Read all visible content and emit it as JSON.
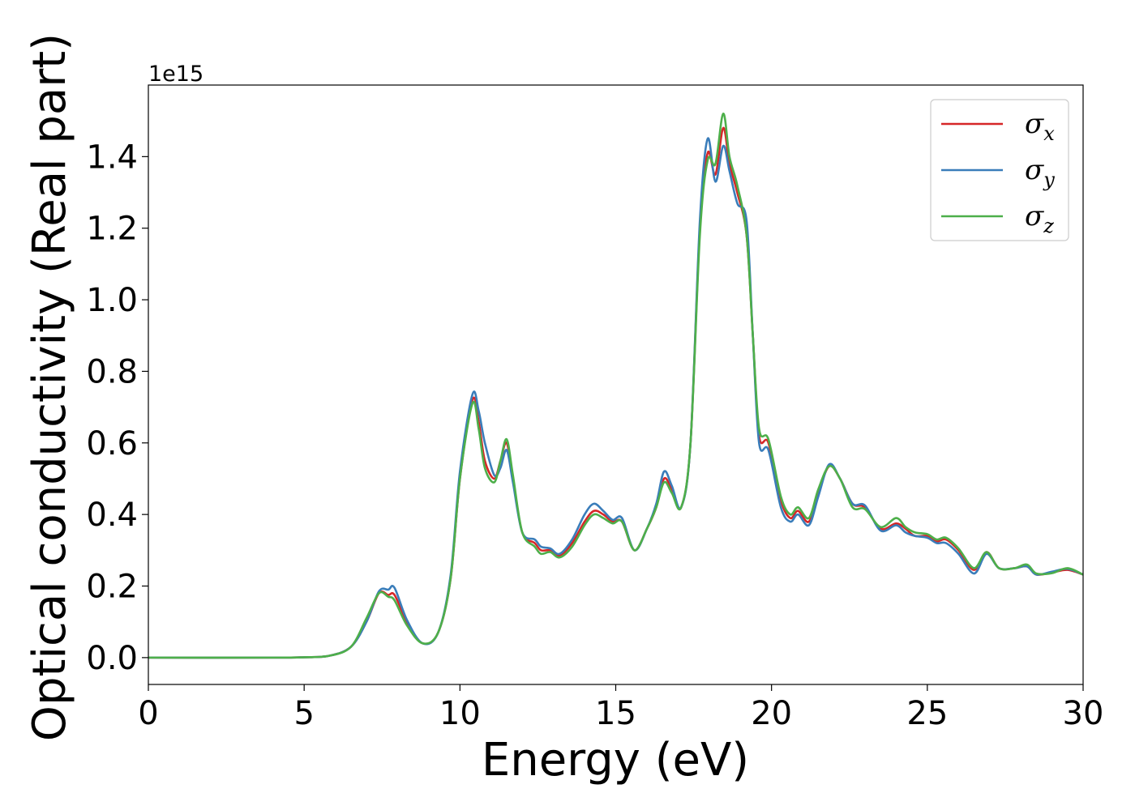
{
  "chart_data": {
    "type": "line",
    "title": "",
    "xlabel": "Energy (eV)",
    "ylabel": "Optical conductivity (Real part)",
    "y_offset_label": "1e15",
    "xlim": [
      0,
      30
    ],
    "ylim": [
      -0.075,
      1.6
    ],
    "x_ticks": [
      0,
      5,
      10,
      15,
      20,
      25,
      30
    ],
    "x_tick_labels": [
      "0",
      "5",
      "10",
      "15",
      "20",
      "25",
      "30"
    ],
    "y_ticks": [
      0.0,
      0.2,
      0.4,
      0.6,
      0.8,
      1.0,
      1.2,
      1.4
    ],
    "y_tick_labels": [
      "0.0",
      "0.2",
      "0.4",
      "0.6",
      "0.8",
      "1.0",
      "1.2",
      "1.4"
    ],
    "grid": false,
    "legend_position": "top-right",
    "series": [
      {
        "name": "σx",
        "symbol": "σ",
        "subscript": "x",
        "color": "#d62728",
        "x": [
          0,
          4,
          5,
          5.8,
          6.5,
          7.0,
          7.4,
          7.7,
          7.9,
          8.3,
          8.8,
          9.3,
          9.7,
          10.0,
          10.4,
          10.6,
          10.8,
          11.1,
          11.3,
          11.5,
          11.7,
          12.0,
          12.4,
          12.6,
          12.9,
          13.2,
          13.6,
          14.0,
          14.3,
          14.6,
          14.9,
          15.2,
          15.6,
          16.0,
          16.3,
          16.55,
          16.8,
          17.1,
          17.4,
          17.7,
          17.95,
          18.2,
          18.45,
          18.65,
          18.9,
          19.2,
          19.4,
          19.6,
          19.9,
          20.3,
          20.6,
          20.85,
          21.2,
          21.5,
          21.85,
          22.2,
          22.6,
          23.0,
          23.5,
          24.0,
          24.3,
          24.6,
          25.0,
          25.3,
          25.6,
          26.0,
          26.5,
          26.9,
          27.3,
          27.8,
          28.2,
          28.5,
          29.0,
          29.5,
          30.0
        ],
        "y": [
          0.0,
          0.0,
          0.001,
          0.005,
          0.03,
          0.1,
          0.18,
          0.175,
          0.175,
          0.1,
          0.04,
          0.07,
          0.22,
          0.5,
          0.72,
          0.66,
          0.55,
          0.5,
          0.55,
          0.6,
          0.5,
          0.35,
          0.32,
          0.3,
          0.3,
          0.285,
          0.32,
          0.38,
          0.41,
          0.4,
          0.38,
          0.38,
          0.3,
          0.36,
          0.42,
          0.5,
          0.47,
          0.42,
          0.6,
          1.2,
          1.41,
          1.35,
          1.48,
          1.38,
          1.3,
          1.18,
          0.9,
          0.62,
          0.6,
          0.44,
          0.39,
          0.41,
          0.38,
          0.46,
          0.535,
          0.5,
          0.43,
          0.42,
          0.36,
          0.375,
          0.36,
          0.34,
          0.34,
          0.325,
          0.33,
          0.3,
          0.245,
          0.295,
          0.25,
          0.25,
          0.255,
          0.232,
          0.238,
          0.245,
          0.232
        ]
      },
      {
        "name": "σy",
        "symbol": "σ",
        "subscript": "y",
        "color": "#3a7dba",
        "x": [
          0,
          4,
          5,
          5.8,
          6.5,
          7.0,
          7.4,
          7.7,
          7.9,
          8.3,
          8.8,
          9.3,
          9.7,
          10.0,
          10.4,
          10.6,
          10.8,
          11.1,
          11.3,
          11.5,
          11.7,
          12.0,
          12.4,
          12.6,
          12.9,
          13.2,
          13.6,
          14.0,
          14.3,
          14.6,
          14.9,
          15.2,
          15.6,
          16.0,
          16.3,
          16.55,
          16.8,
          17.1,
          17.4,
          17.7,
          17.95,
          18.2,
          18.45,
          18.65,
          18.9,
          19.2,
          19.4,
          19.6,
          19.9,
          20.3,
          20.6,
          20.85,
          21.2,
          21.5,
          21.85,
          22.2,
          22.6,
          23.0,
          23.5,
          24.0,
          24.3,
          24.6,
          25.0,
          25.3,
          25.6,
          26.0,
          26.5,
          26.9,
          27.3,
          27.8,
          28.2,
          28.5,
          29.0,
          29.5,
          30.0
        ],
        "y": [
          0.0,
          0.0,
          0.001,
          0.005,
          0.03,
          0.1,
          0.185,
          0.19,
          0.195,
          0.105,
          0.04,
          0.07,
          0.23,
          0.52,
          0.735,
          0.69,
          0.6,
          0.51,
          0.53,
          0.58,
          0.49,
          0.35,
          0.33,
          0.31,
          0.305,
          0.29,
          0.33,
          0.4,
          0.43,
          0.41,
          0.385,
          0.39,
          0.3,
          0.36,
          0.43,
          0.52,
          0.48,
          0.42,
          0.6,
          1.22,
          1.45,
          1.33,
          1.43,
          1.36,
          1.27,
          1.22,
          0.9,
          0.6,
          0.58,
          0.42,
          0.38,
          0.4,
          0.37,
          0.45,
          0.54,
          0.5,
          0.43,
          0.425,
          0.355,
          0.37,
          0.35,
          0.34,
          0.335,
          0.32,
          0.32,
          0.29,
          0.235,
          0.29,
          0.25,
          0.25,
          0.255,
          0.232,
          0.24,
          0.248,
          0.232
        ]
      },
      {
        "name": "σz",
        "symbol": "σ",
        "subscript": "z",
        "color": "#4daf4a",
        "x": [
          0,
          4,
          5,
          5.8,
          6.5,
          7.0,
          7.4,
          7.7,
          7.9,
          8.3,
          8.8,
          9.3,
          9.7,
          10.0,
          10.4,
          10.6,
          10.8,
          11.1,
          11.3,
          11.5,
          11.7,
          12.0,
          12.4,
          12.6,
          12.9,
          13.2,
          13.6,
          14.0,
          14.3,
          14.6,
          14.9,
          15.2,
          15.6,
          16.0,
          16.3,
          16.55,
          16.8,
          17.1,
          17.4,
          17.7,
          17.95,
          18.2,
          18.45,
          18.65,
          18.9,
          19.2,
          19.4,
          19.6,
          19.9,
          20.3,
          20.6,
          20.85,
          21.2,
          21.5,
          21.85,
          22.2,
          22.6,
          23.0,
          23.5,
          24.0,
          24.3,
          24.6,
          25.0,
          25.3,
          25.6,
          26.0,
          26.5,
          26.9,
          27.3,
          27.8,
          28.2,
          28.5,
          29.0,
          29.5,
          30.0
        ],
        "y": [
          0.0,
          0.0,
          0.001,
          0.005,
          0.03,
          0.11,
          0.18,
          0.17,
          0.16,
          0.09,
          0.04,
          0.07,
          0.22,
          0.5,
          0.71,
          0.64,
          0.53,
          0.49,
          0.55,
          0.61,
          0.51,
          0.35,
          0.31,
          0.29,
          0.295,
          0.28,
          0.31,
          0.37,
          0.4,
          0.39,
          0.375,
          0.38,
          0.3,
          0.36,
          0.42,
          0.49,
          0.46,
          0.42,
          0.6,
          1.18,
          1.39,
          1.38,
          1.52,
          1.4,
          1.32,
          1.18,
          0.9,
          0.64,
          0.61,
          0.45,
          0.4,
          0.42,
          0.39,
          0.47,
          0.535,
          0.5,
          0.42,
          0.415,
          0.365,
          0.39,
          0.365,
          0.35,
          0.345,
          0.33,
          0.335,
          0.305,
          0.25,
          0.295,
          0.25,
          0.25,
          0.26,
          0.235,
          0.236,
          0.25,
          0.232
        ]
      }
    ]
  }
}
